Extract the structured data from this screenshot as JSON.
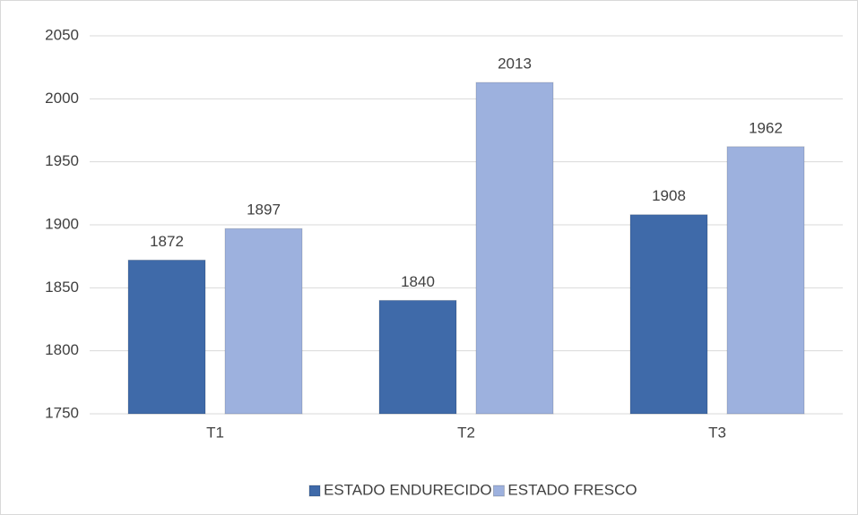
{
  "chart_data": {
    "type": "bar",
    "categories": [
      "T1",
      "T2",
      "T3"
    ],
    "series": [
      {
        "name": "ESTADO ENDURECIDO",
        "color": "#3f6aa9",
        "values": [
          1872,
          1840,
          1908
        ]
      },
      {
        "name": "ESTADO FRESCO",
        "color": "#9db1de",
        "values": [
          1897,
          2013,
          1962
        ]
      }
    ],
    "ylim": [
      1750,
      2050
    ],
    "yticks": [
      1750,
      1800,
      1850,
      1900,
      1950,
      2000,
      2050
    ],
    "grid": true,
    "legend": "bottom"
  }
}
